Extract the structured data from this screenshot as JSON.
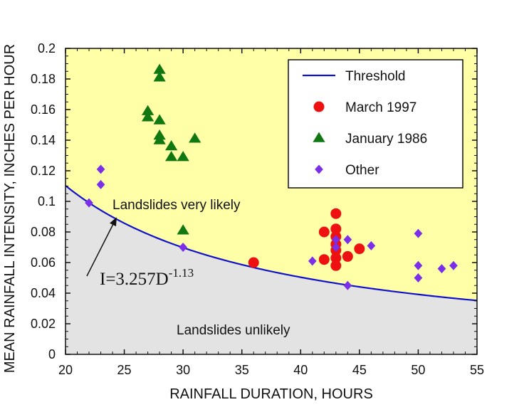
{
  "chart_data": {
    "type": "scatter",
    "title": "",
    "xlabel": "RAINFALL DURATION, HOURS",
    "ylabel": "MEAN RAINFALL INTENSITY, INCHES PER HOUR",
    "xlim": [
      20,
      55
    ],
    "ylim": [
      0,
      0.2
    ],
    "x_ticks": [
      20,
      25,
      30,
      35,
      40,
      45,
      50,
      55
    ],
    "y_ticks": [
      0,
      0.02,
      0.04,
      0.06,
      0.08,
      0.1,
      0.12,
      0.14,
      0.16,
      0.18,
      0.2
    ],
    "x_tick_labels": [
      "20",
      "25",
      "30",
      "35",
      "40",
      "45",
      "50",
      "55"
    ],
    "y_tick_labels": [
      "0",
      "0.02",
      "0.04",
      "0.06",
      "0.08",
      "0.1",
      "0.12",
      "0.14",
      "0.16",
      "0.18",
      "0.2"
    ],
    "grid": false,
    "legend_position": "top-right",
    "region_colors": {
      "above_threshold": "#ffffa8",
      "below_threshold": "#e3e3e3"
    },
    "threshold": {
      "name": "Threshold",
      "color": "#1111cc",
      "coefficient": 3.257,
      "exponent": -1.13
    },
    "series": [
      {
        "name": "March 1997",
        "marker": "circle",
        "color": "#ee1111",
        "points": [
          {
            "x": 36,
            "y": 0.06
          },
          {
            "x": 42,
            "y": 0.08
          },
          {
            "x": 42,
            "y": 0.062
          },
          {
            "x": 43,
            "y": 0.092
          },
          {
            "x": 43,
            "y": 0.082
          },
          {
            "x": 43,
            "y": 0.077
          },
          {
            "x": 43,
            "y": 0.072
          },
          {
            "x": 43,
            "y": 0.068
          },
          {
            "x": 43,
            "y": 0.063
          },
          {
            "x": 43,
            "y": 0.058
          },
          {
            "x": 44,
            "y": 0.064
          },
          {
            "x": 45,
            "y": 0.069
          }
        ]
      },
      {
        "name": "January 1986",
        "marker": "triangle",
        "color": "#117711",
        "points": [
          {
            "x": 27,
            "y": 0.159
          },
          {
            "x": 27,
            "y": 0.155
          },
          {
            "x": 28,
            "y": 0.186
          },
          {
            "x": 28,
            "y": 0.181
          },
          {
            "x": 28,
            "y": 0.153
          },
          {
            "x": 28,
            "y": 0.143
          },
          {
            "x": 28,
            "y": 0.14
          },
          {
            "x": 29,
            "y": 0.136
          },
          {
            "x": 29,
            "y": 0.129
          },
          {
            "x": 30,
            "y": 0.129
          },
          {
            "x": 31,
            "y": 0.141
          },
          {
            "x": 30,
            "y": 0.081
          }
        ]
      },
      {
        "name": "Other",
        "marker": "diamond",
        "color": "#7b2fe8",
        "points": [
          {
            "x": 22,
            "y": 0.099
          },
          {
            "x": 23,
            "y": 0.121
          },
          {
            "x": 23,
            "y": 0.111
          },
          {
            "x": 30,
            "y": 0.07
          },
          {
            "x": 41,
            "y": 0.061
          },
          {
            "x": 43,
            "y": 0.075
          },
          {
            "x": 43,
            "y": 0.07
          },
          {
            "x": 44,
            "y": 0.075
          },
          {
            "x": 44,
            "y": 0.045
          },
          {
            "x": 46,
            "y": 0.071
          },
          {
            "x": 50,
            "y": 0.079
          },
          {
            "x": 50,
            "y": 0.058
          },
          {
            "x": 50,
            "y": 0.05
          },
          {
            "x": 52,
            "y": 0.056
          },
          {
            "x": 53,
            "y": 0.058
          }
        ]
      }
    ],
    "annotations": {
      "above_label": "Landslides very likely",
      "below_label": "Landslides unlikely",
      "equation_base": "I=3.257D",
      "equation_exponent": "-1.13"
    },
    "legend_items": [
      {
        "label": "Threshold",
        "marker": "line",
        "color": "#1111cc"
      },
      {
        "label": "March 1997",
        "marker": "circle",
        "color": "#ee1111"
      },
      {
        "label": "January 1986",
        "marker": "triangle",
        "color": "#117711"
      },
      {
        "label": "Other",
        "marker": "diamond",
        "color": "#7b2fe8"
      }
    ]
  }
}
